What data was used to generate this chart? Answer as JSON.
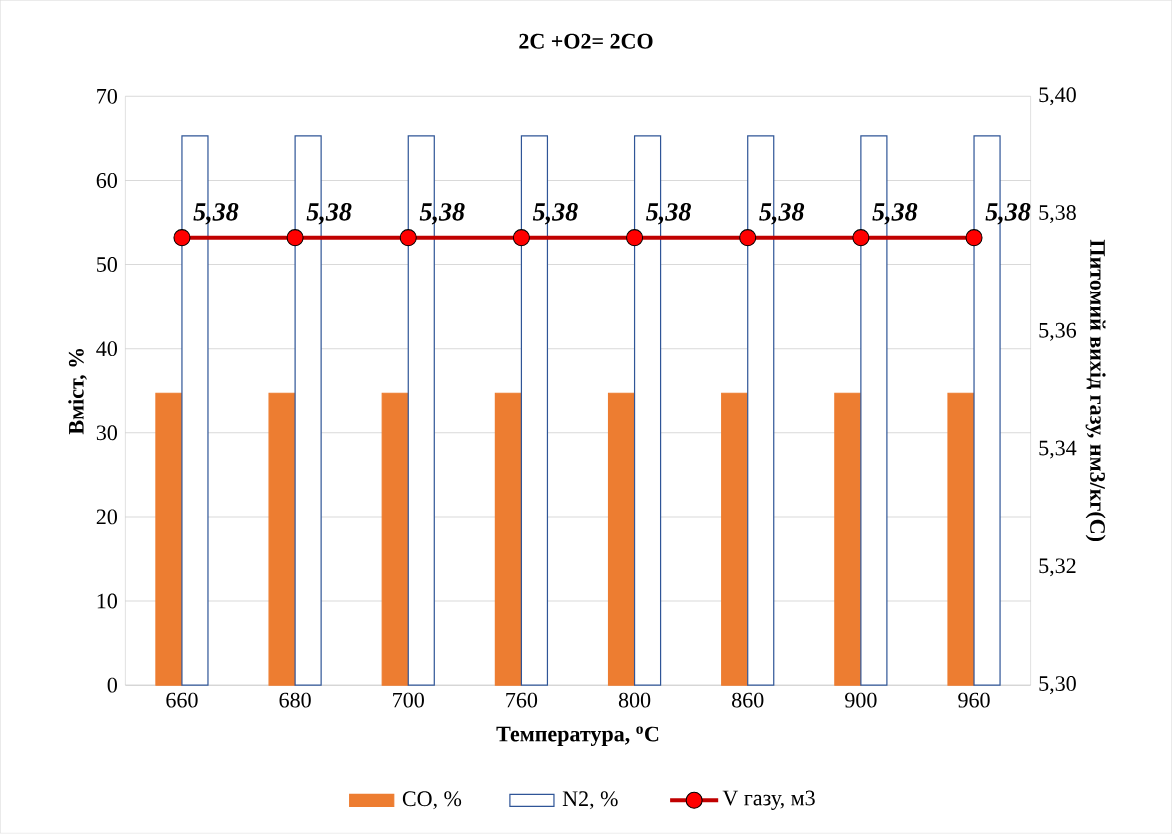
{
  "chart_data": {
    "type": "bar",
    "title": "2C +O2= 2CO",
    "xlabel": "Температура, $^{o}$C",
    "ylabel": "Вміст, %",
    "y2label": "Питомий вихід газу, нм3/кг(С)",
    "categories": [
      "660",
      "680",
      "700",
      "760",
      "800",
      "860",
      "900",
      "960"
    ],
    "series": [
      {
        "name": "CO, %",
        "color": "#ed7d31",
        "values": [
          34.7,
          34.7,
          34.7,
          34.7,
          34.7,
          34.7,
          34.7,
          34.7
        ]
      },
      {
        "name": "N2, %",
        "color": "#2f5597",
        "values": [
          65.3,
          65.3,
          65.3,
          65.3,
          65.3,
          65.3,
          65.3,
          65.3
        ]
      },
      {
        "name": "V газу, м3",
        "type": "line",
        "axis": "y2",
        "color": "#c00000",
        "marker": "circle",
        "values": [
          5.376,
          5.376,
          5.376,
          5.376,
          5.376,
          5.376,
          5.376,
          5.376
        ],
        "value_labels": [
          "5,38",
          "5,38",
          "5,38",
          "5,38",
          "5,38",
          "5,38",
          "5,38",
          "5,38"
        ]
      }
    ],
    "ylim": [
      0,
      70
    ],
    "yticks": [
      0,
      10,
      20,
      30,
      40,
      50,
      60,
      70
    ],
    "y2lim": [
      5.3,
      5.4
    ],
    "y2ticks": [
      {
        "value": 5.3,
        "label": "5,30"
      },
      {
        "value": 5.32,
        "label": "5,32"
      },
      {
        "value": 5.34,
        "label": "5,34"
      },
      {
        "value": 5.36,
        "label": "5,36"
      },
      {
        "value": 5.38,
        "label": "5,38"
      },
      {
        "value": 5.4,
        "label": "5,40"
      }
    ],
    "grid": "y",
    "legend": "bottom"
  }
}
